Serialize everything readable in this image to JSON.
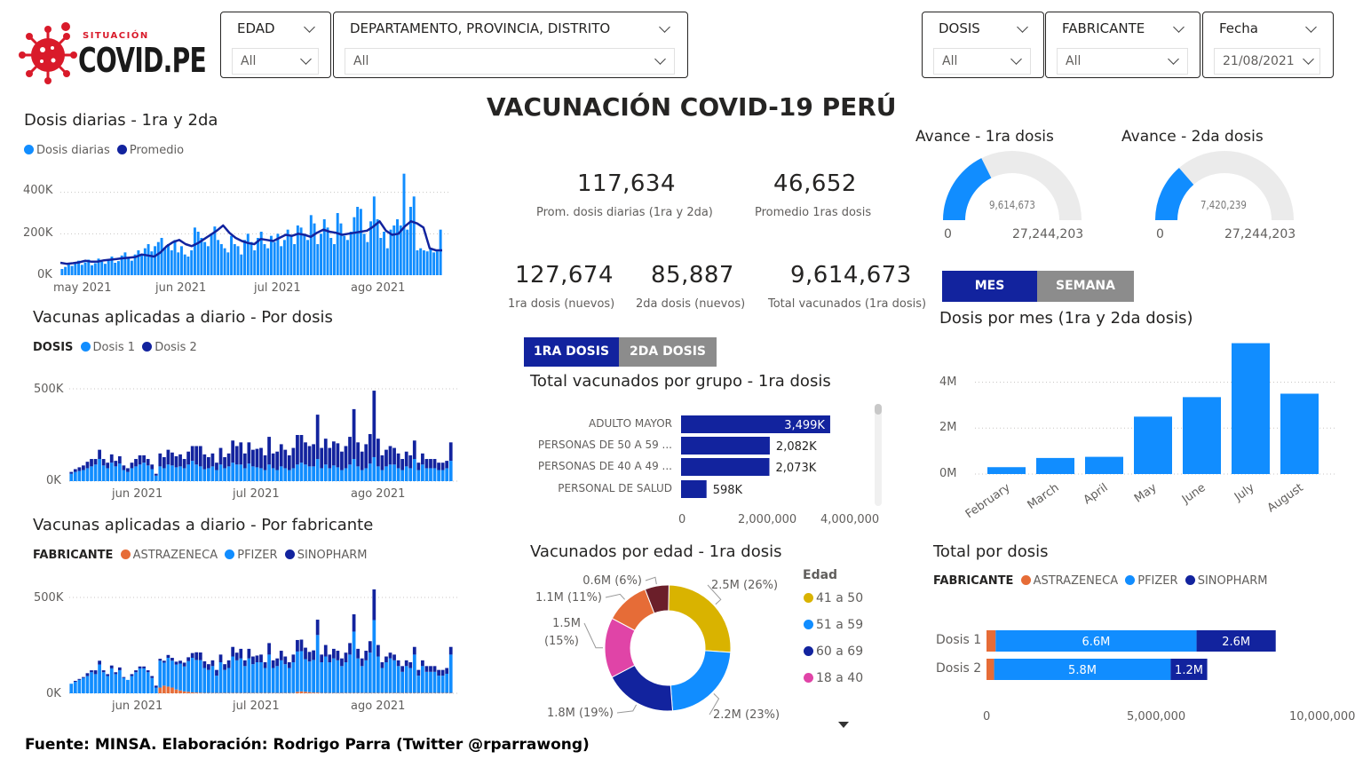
{
  "logo": {
    "top": "SITUACIÓN",
    "main": "COVID.PE"
  },
  "slicers": {
    "edad": {
      "title": "EDAD",
      "value": "All"
    },
    "ubicacion": {
      "title": "DEPARTAMENTO, PROVINCIA, DISTRITO",
      "value": "All"
    },
    "dosis": {
      "title": "DOSIS",
      "value": "All"
    },
    "fabricante": {
      "title": "FABRICANTE",
      "value": "All"
    },
    "fecha": {
      "title": "Fecha",
      "value": "21/08/2021"
    }
  },
  "dashboard_title": "VACUNACIÓN COVID-19 PERÚ",
  "kpis": {
    "prom_diarias": {
      "value": "117,634",
      "label": "Prom. dosis diarias (1ra y 2da)"
    },
    "prom_1ras": {
      "value": "46,652",
      "label": "Promedio 1ras dosis"
    },
    "primera_nuevos": {
      "value": "127,674",
      "label": "1ra dosis (nuevos)"
    },
    "segunda_nuevos": {
      "value": "85,887",
      "label": "2da dosis (nuevos)"
    },
    "total_vacunados": {
      "value": "9,614,673",
      "label": "Total vacunados (1ra dosis)"
    }
  },
  "gauges": {
    "g1": {
      "title": "Avance - 1ra dosis",
      "value_label": "9,614,673",
      "min_label": "0",
      "max_label": "27,244,203",
      "value": 9614673,
      "max": 27244203
    },
    "g2": {
      "title": "Avance - 2da dosis",
      "value_label": "7,420,239",
      "min_label": "0",
      "max_label": "27,244,203",
      "value": 7420239,
      "max": 27244203
    }
  },
  "toggles": {
    "periodo": {
      "on": "MES",
      "off": "SEMANA"
    },
    "dosis": {
      "on": "1RA DOSIS",
      "off": "2DA DOSIS"
    }
  },
  "footer": "Fuente: MINSA. Elaboración: Rodrigo Parra (Twitter @rparrawong)",
  "colors": {
    "light_blue": "#118dff",
    "dark_blue": "#12239e",
    "orange": "#e66c37",
    "magenta": "#e044a7",
    "yellow": "#d9b300",
    "maroon": "#6b007b",
    "gauge_bg": "#ebebeb"
  },
  "chart_data": [
    {
      "id": "daily",
      "type": "line",
      "title": "Dosis diarias - 1ra y 2da",
      "legend": [
        "Dosis diarias",
        "Promedio"
      ],
      "yticks": [
        "400K",
        "200K",
        "0K"
      ],
      "ylim": [
        0,
        480000
      ],
      "xticks": [
        "may 2021",
        "jun 2021",
        "jul 2021",
        "ago 2021"
      ],
      "series": [
        {
          "name": "Dosis diarias",
          "chart": "bar",
          "values": [
            30000,
            40000,
            55000,
            45000,
            60000,
            70000,
            50000,
            62000,
            75000,
            48000,
            58000,
            80000,
            65000,
            55000,
            72000,
            90000,
            60000,
            68000,
            95000,
            110000,
            85000,
            70000,
            100000,
            120000,
            95000,
            130000,
            150000,
            115000,
            140000,
            160000,
            180000,
            130000,
            150000,
            120000,
            170000,
            110000,
            140000,
            100000,
            90000,
            120000,
            230000,
            210000,
            180000,
            160000,
            140000,
            200000,
            235000,
            170000,
            150000,
            130000,
            110000,
            190000,
            150000,
            140000,
            100000,
            170000,
            200000,
            160000,
            120000,
            180000,
            210000,
            150000,
            130000,
            190000,
            160000,
            200000,
            140000,
            170000,
            220000,
            190000,
            150000,
            240000,
            230000,
            200000,
            170000,
            290000,
            250000,
            150000,
            200000,
            270000,
            230000,
            180000,
            150000,
            300000,
            250000,
            190000,
            170000,
            210000,
            280000,
            330000,
            320000,
            200000,
            160000,
            260000,
            380000,
            270000,
            180000,
            210000,
            130000,
            220000,
            240000,
            270000,
            240000,
            490000,
            220000,
            330000,
            380000,
            120000,
            130000,
            120000,
            115000,
            125000,
            110000,
            115000,
            220000
          ]
        },
        {
          "name": "Promedio",
          "chart": "line",
          "values": [
            60000,
            55000,
            58000,
            62000,
            70000,
            65000,
            66000,
            72000,
            75000,
            78000,
            82000,
            85000,
            88000,
            100000,
            95000,
            90000,
            110000,
            140000,
            160000,
            170000,
            150000,
            140000,
            155000,
            175000,
            195000,
            215000,
            240000,
            205000,
            180000,
            165000,
            155000,
            150000,
            175000,
            170000,
            165000,
            180000,
            195000,
            190000,
            200000,
            195000,
            185000,
            205000,
            220000,
            210000,
            205000,
            195000,
            200000,
            205000,
            210000,
            215000,
            235000,
            260000,
            215000,
            195000,
            200000,
            235000,
            260000,
            250000,
            230000,
            130000,
            120000,
            120000
          ]
        }
      ]
    },
    {
      "id": "pordosis",
      "type": "bar",
      "title": "Vacunas aplicadas a diario - Por dosis",
      "legend_title": "DOSIS",
      "legend": [
        "Dosis 1",
        "Dosis 2"
      ],
      "yticks": [
        "500K",
        "0K"
      ],
      "ylim": [
        0,
        500000
      ],
      "xticks": [
        "jun 2021",
        "jul 2021",
        "ago 2021"
      ],
      "series": [
        {
          "name": "Dosis 1",
          "values": [
            40000,
            50000,
            55000,
            60000,
            70000,
            80000,
            90000,
            120000,
            85000,
            70000,
            100000,
            80000,
            95000,
            60000,
            50000,
            70000,
            80000,
            90000,
            100000,
            85000,
            65000,
            30000,
            80000,
            70000,
            90000,
            85000,
            75000,
            80000,
            70000,
            90000,
            110000,
            90000,
            80000,
            65000,
            70000,
            80000,
            60000,
            90000,
            70000,
            80000,
            100000,
            90000,
            90000,
            70000,
            95000,
            80000,
            75000,
            70000,
            60000,
            90000,
            70000,
            60000,
            80000,
            70000,
            60000,
            70000,
            90000,
            100000,
            90000,
            80000,
            80000,
            120000,
            70000,
            90000,
            70000,
            85000,
            75000,
            60000,
            70000,
            90000,
            120000,
            80000,
            60000,
            70000,
            95000,
            130000,
            80000,
            60000,
            80000,
            90000,
            90000,
            70000,
            60000,
            80000,
            70000,
            120000,
            60000,
            90000,
            70000,
            70000,
            70000,
            60000,
            60000,
            70000,
            110000
          ]
        },
        {
          "name": "Dosis 2",
          "values": [
            10000,
            15000,
            20000,
            25000,
            35000,
            40000,
            30000,
            50000,
            35000,
            30000,
            45000,
            30000,
            40000,
            25000,
            20000,
            30000,
            40000,
            50000,
            40000,
            35000,
            25000,
            10000,
            70000,
            60000,
            80000,
            70000,
            60000,
            65000,
            50000,
            70000,
            80000,
            100000,
            110000,
            80000,
            60000,
            70000,
            40000,
            90000,
            60000,
            70000,
            120000,
            100000,
            120000,
            80000,
            115000,
            90000,
            100000,
            110000,
            80000,
            150000,
            80000,
            100000,
            120000,
            100000,
            80000,
            110000,
            160000,
            150000,
            120000,
            110000,
            120000,
            240000,
            110000,
            140000,
            110000,
            130000,
            130000,
            100000,
            120000,
            150000,
            270000,
            130000,
            100000,
            130000,
            160000,
            360000,
            150000,
            80000,
            90000,
            100000,
            90000,
            80000,
            60000,
            80000,
            70000,
            100000,
            40000,
            60000,
            50000,
            50000,
            50000,
            40000,
            40000,
            40000,
            100000
          ]
        }
      ]
    },
    {
      "id": "porfab",
      "type": "bar",
      "title": "Vacunas aplicadas a diario - Por fabricante",
      "legend_title": "FABRICANTE",
      "legend": [
        "ASTRAZENECA",
        "PFIZER",
        "SINOPHARM"
      ],
      "yticks": [
        "500K",
        "0K"
      ],
      "ylim": [
        0,
        500000
      ],
      "xticks": [
        "jun 2021",
        "jul 2021",
        "ago 2021"
      ],
      "series": [
        {
          "name": "ASTRAZENECA",
          "values": [
            0,
            0,
            0,
            0,
            0,
            0,
            0,
            0,
            0,
            0,
            0,
            0,
            0,
            0,
            0,
            0,
            0,
            0,
            0,
            0,
            0,
            0,
            30000,
            40000,
            35000,
            30000,
            20000,
            15000,
            10000,
            8000,
            5000,
            4000,
            3000,
            2000,
            2000,
            2000,
            2000,
            2000,
            2000,
            2000,
            2000,
            2000,
            2000,
            2000,
            2000,
            2000,
            2000,
            2000,
            2000,
            2000,
            2000,
            2000,
            2000,
            2000,
            2000,
            2000,
            8000,
            10000,
            8000,
            6000,
            4000,
            4000,
            2000,
            2000,
            2000,
            2000,
            2000,
            2000,
            2000,
            2000,
            2000,
            2000,
            2000,
            2000,
            2000,
            2000,
            2000,
            2000,
            2000,
            2000,
            2000,
            2000,
            2000,
            2000,
            2000,
            2000,
            2000,
            2000,
            2000,
            2000,
            2000,
            2000,
            2000,
            2000,
            2000
          ]
        },
        {
          "name": "PFIZER",
          "values": [
            50000,
            60000,
            70000,
            80000,
            90000,
            110000,
            100000,
            150000,
            110000,
            90000,
            130000,
            100000,
            120000,
            80000,
            70000,
            90000,
            110000,
            130000,
            130000,
            110000,
            80000,
            30000,
            140000,
            120000,
            150000,
            140000,
            130000,
            140000,
            130000,
            160000,
            180000,
            170000,
            170000,
            130000,
            120000,
            140000,
            90000,
            160000,
            120000,
            130000,
            190000,
            170000,
            180000,
            140000,
            180000,
            150000,
            160000,
            160000,
            130000,
            200000,
            130000,
            140000,
            170000,
            150000,
            130000,
            160000,
            210000,
            210000,
            170000,
            160000,
            170000,
            300000,
            160000,
            190000,
            160000,
            180000,
            170000,
            140000,
            160000,
            200000,
            320000,
            180000,
            140000,
            170000,
            210000,
            380000,
            190000,
            130000,
            160000,
            180000,
            170000,
            140000,
            110000,
            140000,
            130000,
            200000,
            90000,
            140000,
            110000,
            110000,
            110000,
            90000,
            90000,
            100000,
            200000
          ]
        },
        {
          "name": "SINOPHARM",
          "values": [
            0,
            5000,
            5000,
            5000,
            15000,
            10000,
            20000,
            20000,
            10000,
            10000,
            15000,
            10000,
            15000,
            5000,
            0,
            10000,
            10000,
            10000,
            10000,
            10000,
            10000,
            10000,
            10000,
            10000,
            15000,
            15000,
            15000,
            15000,
            20000,
            20000,
            25000,
            40000,
            40000,
            35000,
            30000,
            30000,
            30000,
            40000,
            30000,
            40000,
            50000,
            40000,
            50000,
            30000,
            50000,
            40000,
            35000,
            40000,
            30000,
            60000,
            40000,
            40000,
            50000,
            40000,
            30000,
            40000,
            60000,
            60000,
            60000,
            50000,
            50000,
            80000,
            40000,
            60000,
            40000,
            50000,
            50000,
            40000,
            50000,
            60000,
            90000,
            50000,
            40000,
            50000,
            60000,
            160000,
            60000,
            30000,
            30000,
            30000,
            30000,
            30000,
            30000,
            30000,
            30000,
            40000,
            30000,
            30000,
            30000,
            30000,
            30000,
            30000,
            30000,
            30000,
            40000
          ]
        }
      ]
    },
    {
      "id": "grupo",
      "type": "bar",
      "orientation": "horizontal",
      "title": "Total vacunados por grupo - 1ra dosis",
      "categories": [
        "ADULTO MAYOR",
        "PERSONAS DE 50 A 59 ...",
        "PERSONAS DE 40 A 49 ...",
        "PERSONAL DE SALUD"
      ],
      "values": [
        3499000,
        2082000,
        2073000,
        598000
      ],
      "value_labels": [
        "3,499K",
        "2,082K",
        "2,073K",
        "598K"
      ],
      "xticks": [
        "0",
        "2,000,000",
        "4,000,000"
      ],
      "xlim": [
        0,
        4000000
      ]
    },
    {
      "id": "edad",
      "type": "pie",
      "title": "Vacunados por edad - 1ra dosis",
      "legend_title": "Edad",
      "legend": [
        "41 a 50",
        "51 a 59",
        "60 a 69",
        "18 a 40"
      ],
      "slices": [
        {
          "value": 2.5,
          "label": "2.5M (26%)",
          "color": "#d9b300"
        },
        {
          "value": 2.2,
          "label": "2.2M (23%)",
          "color": "#118dff"
        },
        {
          "value": 1.8,
          "label": "1.8M (19%)",
          "color": "#12239e"
        },
        {
          "value": 1.5,
          "label": "1.5M",
          "label2": "(15%)",
          "color": "#e044a7"
        },
        {
          "value": 1.1,
          "label": "1.1M (11%)",
          "color": "#e66c37"
        },
        {
          "value": 0.6,
          "label": "0.6M (6%)",
          "color": "#6b1f2a"
        }
      ]
    },
    {
      "id": "mes",
      "type": "bar",
      "title": "Dosis por mes (1ra y 2da dosis)",
      "categories": [
        "February",
        "March",
        "April",
        "May",
        "June",
        "July",
        "August"
      ],
      "values": [
        300000,
        700000,
        750000,
        2500000,
        3350000,
        5700000,
        3500000
      ],
      "yticks": [
        "4M",
        "2M",
        "0M"
      ],
      "ylim": [
        0,
        5800000
      ]
    },
    {
      "id": "totaldosis",
      "type": "bar",
      "orientation": "horizontal",
      "stacked": true,
      "title": "Total por dosis",
      "legend_title": "FABRICANTE",
      "legend": [
        "ASTRAZENECA",
        "PFIZER",
        "SINOPHARM"
      ],
      "categories": [
        "Dosis 1",
        "Dosis 2"
      ],
      "series": [
        {
          "name": "ASTRAZENECA",
          "values": [
            0.3,
            0.25
          ]
        },
        {
          "name": "PFIZER",
          "values": [
            6.6,
            5.8
          ],
          "labels": [
            "6.6M",
            "5.8M"
          ]
        },
        {
          "name": "SINOPHARM",
          "values": [
            2.6,
            1.2
          ],
          "labels": [
            "2.6M",
            "1.2M"
          ]
        }
      ],
      "xticks": [
        "0",
        "5,000,000",
        "10,000,000"
      ],
      "xlim": [
        0,
        10.5
      ]
    }
  ]
}
